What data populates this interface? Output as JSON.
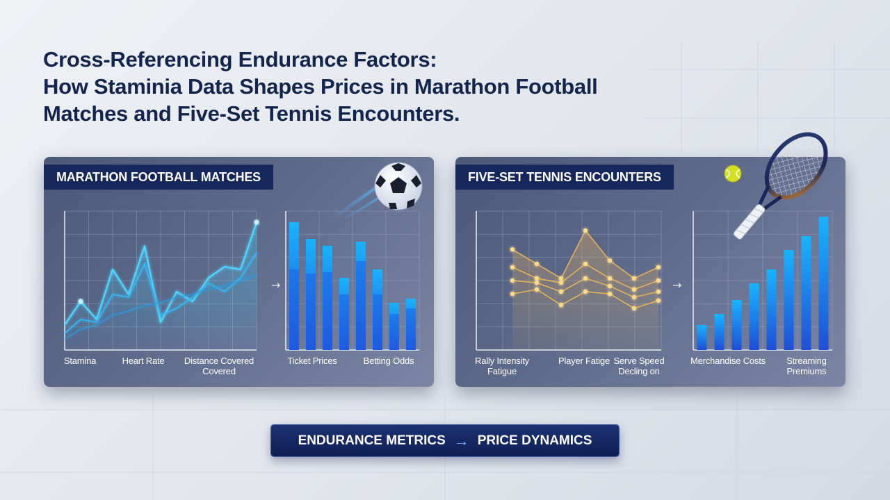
{
  "title": {
    "line1": "Cross-Referencing Endurance Factors:",
    "line2": "How Staminia Data Shapes Prices in Marathon Football",
    "line3": "Matches and Five-Set Tennis Encounters."
  },
  "panels": {
    "football": {
      "heading": "MARATHON FOOTBALL MATCHES",
      "line_labels": [
        "Stamina",
        "Heart Rate",
        "Distance Covered Covered"
      ],
      "bar_labels": [
        "Ticket Prices",
        "Betting Odds"
      ]
    },
    "tennis": {
      "heading": "FIVE-SET TENNIS ENCOUNTERS",
      "line_labels": [
        "Rally Intensity Fatigue",
        "Player Fatige",
        "Serve Speed Decling on"
      ],
      "bar_labels": [
        "Merchandise Costs",
        "Streaming Premiums"
      ]
    }
  },
  "arrow_glyph": "→",
  "cta": {
    "left": "ENDURANCE METRICS",
    "arrow": "→",
    "right": "PRICE DYNAMICS"
  },
  "colors": {
    "navy": "#14265a",
    "cyan_line": "#3fd0ff",
    "blue_bar_top": "#18b4ff",
    "blue_bar_bottom": "#1f4fd6",
    "gold_line": "#f0b95a"
  },
  "chart_data": [
    {
      "type": "line",
      "panel": "football",
      "series": [
        {
          "values": [
            0.18,
            0.35,
            0.22,
            0.58,
            0.4,
            0.75,
            0.2,
            0.42,
            0.35,
            0.52,
            0.6,
            0.58,
            0.92
          ]
        },
        {
          "values": [
            0.12,
            0.22,
            0.2,
            0.4,
            0.38,
            0.62,
            0.25,
            0.3,
            0.38,
            0.48,
            0.42,
            0.52,
            0.7
          ]
        },
        {
          "values": [
            0.08,
            0.15,
            0.18,
            0.25,
            0.28,
            0.32,
            0.34,
            0.38,
            0.4,
            0.44,
            0.46,
            0.5,
            0.54
          ]
        }
      ]
    },
    {
      "type": "bar",
      "panel": "football",
      "series": [
        {
          "values": [
            0.92,
            0.8,
            0.75,
            0.52,
            0.78,
            0.58,
            0.34,
            0.37
          ]
        },
        {
          "values": [
            0.58,
            0.55,
            0.56,
            0.4,
            0.64,
            0.4,
            0.26,
            0.3
          ]
        }
      ]
    },
    {
      "type": "line",
      "panel": "tennis",
      "series": [
        {
          "values": [
            0.78,
            0.65,
            0.52,
            0.95,
            0.68,
            0.52,
            0.62
          ]
        },
        {
          "values": [
            0.62,
            0.52,
            0.48,
            0.65,
            0.52,
            0.42,
            0.5
          ]
        },
        {
          "values": [
            0.5,
            0.48,
            0.4,
            0.52,
            0.45,
            0.35,
            0.4
          ]
        },
        {
          "values": [
            0.38,
            0.42,
            0.28,
            0.4,
            0.38,
            0.25,
            0.32
          ]
        }
      ]
    },
    {
      "type": "bar",
      "panel": "tennis",
      "values": [
        0.18,
        0.26,
        0.36,
        0.48,
        0.58,
        0.72,
        0.82,
        0.96
      ]
    }
  ]
}
